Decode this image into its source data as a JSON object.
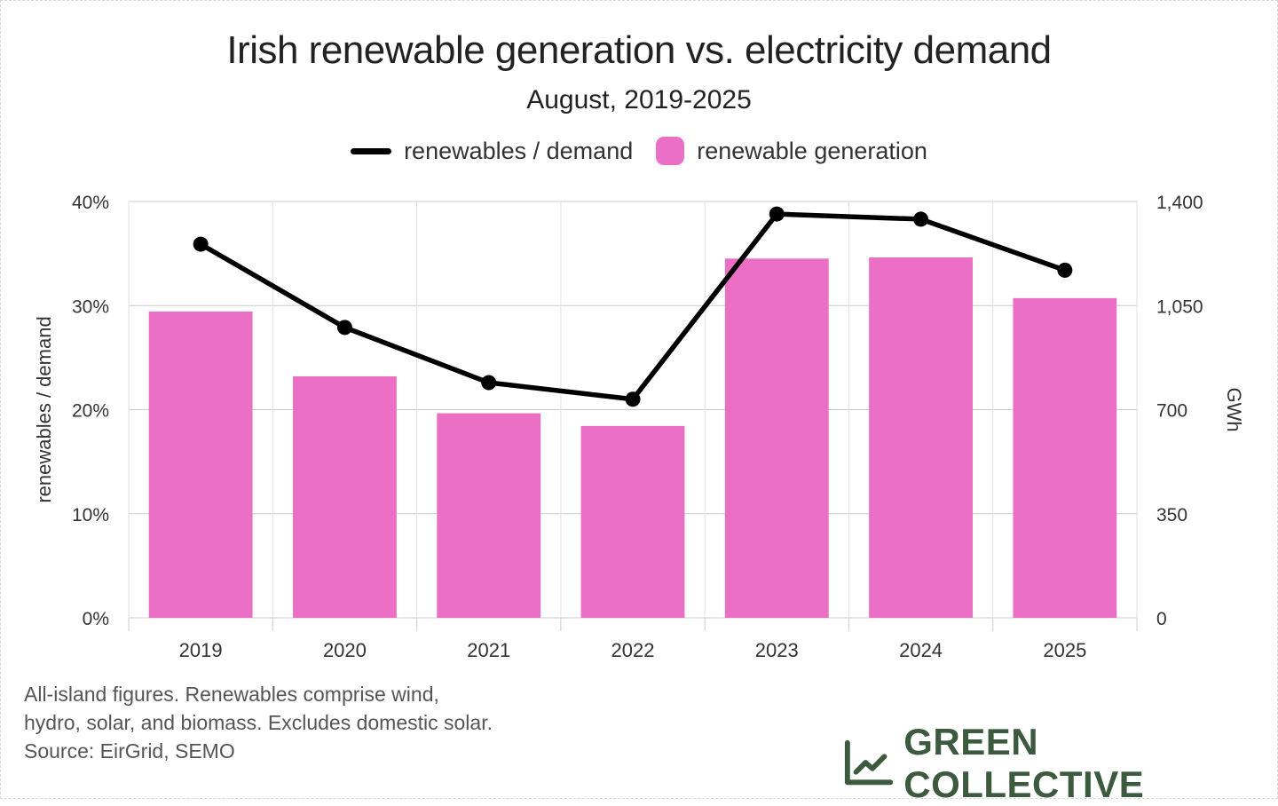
{
  "title": "Irish renewable generation vs. electricity demand",
  "subtitle": "August, 2019-2025",
  "legend": {
    "line_label": "renewables / demand",
    "bar_label": "renewable generation"
  },
  "footnote": {
    "line1": "All-island figures. Renewables comprise wind,",
    "line2": "hydro, solar, and biomass. Excludes domestic solar.",
    "line3": "Source: EirGrid, SEMO"
  },
  "brand": {
    "name": "GREEN COLLECTIVE",
    "icon": "line-chart-icon"
  },
  "colors": {
    "bar": "#ec6fc6",
    "line": "#000000",
    "brand": "#3c5a3e",
    "grid": "#cccccc"
  },
  "chart_data": {
    "type": "bar",
    "categories": [
      "2019",
      "2020",
      "2021",
      "2022",
      "2023",
      "2024",
      "2025"
    ],
    "series": [
      {
        "name": "renewable generation",
        "type": "bar",
        "axis": "right",
        "values": [
          1030,
          812,
          688,
          645,
          1208,
          1212,
          1075
        ]
      },
      {
        "name": "renewables / demand",
        "type": "line",
        "axis": "left",
        "values": [
          0.359,
          0.279,
          0.226,
          0.21,
          0.388,
          0.383,
          0.334
        ]
      }
    ],
    "ylabel": "renewables / demand",
    "y2label": "GWh",
    "ylim": [
      0,
      0.4
    ],
    "y2lim": [
      0,
      1400
    ],
    "yticks": [
      "0%",
      "10%",
      "20%",
      "30%",
      "40%"
    ],
    "y2ticks": [
      "0",
      "350",
      "700",
      "1,050",
      "1,400"
    ],
    "grid": true,
    "legend_position": "top-center"
  }
}
